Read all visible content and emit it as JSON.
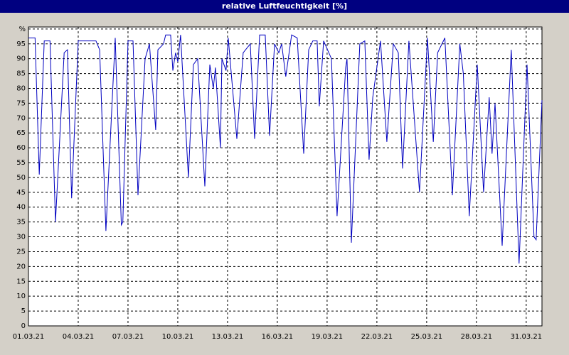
{
  "chart_data": {
    "type": "line",
    "title": "relative Luftfeuchtigkeit [%]",
    "xlim": [
      0,
      30.95
    ],
    "ylim": [
      0,
      100
    ],
    "xticks": [
      {
        "value": 0,
        "label": "01.03.21"
      },
      {
        "value": 3,
        "label": "04.03.21"
      },
      {
        "value": 6,
        "label": "07.03.21"
      },
      {
        "value": 9,
        "label": "10.03.21"
      },
      {
        "value": 12,
        "label": "13.03.21"
      },
      {
        "value": 15,
        "label": "16.03.21"
      },
      {
        "value": 18,
        "label": "19.03.21"
      },
      {
        "value": 21,
        "label": "22.03.21"
      },
      {
        "value": 24,
        "label": "25.03.21"
      },
      {
        "value": 27,
        "label": "28.03.21"
      },
      {
        "value": 30,
        "label": "31.03.21"
      }
    ],
    "yticks": [
      0,
      5,
      10,
      15,
      20,
      25,
      30,
      35,
      40,
      45,
      50,
      55,
      60,
      65,
      70,
      75,
      80,
      85,
      90,
      95,
      {
        "value": 100,
        "label": "%"
      }
    ],
    "grid": true,
    "series": [
      {
        "color": "#0000c0",
        "x": [
          0,
          0.4,
          0.65,
          0.95,
          1.3,
          1.63,
          2.15,
          2.35,
          2.6,
          3.0,
          4.07,
          4.29,
          4.67,
          5.23,
          5.6,
          5.69,
          6.0,
          6.3,
          6.6,
          7.03,
          7.29,
          7.67,
          7.8,
          8.14,
          8.27,
          8.57,
          8.7,
          8.87,
          9.0,
          9.17,
          9.64,
          9.94,
          10.2,
          10.63,
          10.93,
          11.14,
          11.27,
          11.57,
          11.66,
          11.91,
          12.04,
          12.56,
          12.94,
          13.37,
          13.63,
          13.93,
          14.27,
          14.53,
          14.83,
          15.09,
          15.26,
          15.51,
          15.86,
          16.2,
          16.59,
          16.89,
          17.14,
          17.4,
          17.53,
          17.79,
          18.26,
          18.6,
          19.12,
          19.2,
          19.46,
          19.97,
          20.27,
          20.53,
          20.75,
          21.22,
          21.6,
          21.99,
          22.29,
          22.55,
          22.93,
          23.57,
          24.05,
          24.4,
          24.66,
          25.1,
          25.55,
          26.0,
          26.21,
          26.57,
          27.05,
          27.43,
          27.77,
          27.94,
          28.12,
          28.55,
          29.1,
          29.57,
          30.05,
          30.47,
          30.6,
          30.95
        ],
        "values": [
          97,
          97,
          51,
          96,
          96,
          35,
          92,
          93,
          43,
          96,
          96,
          93,
          32,
          97,
          34,
          35,
          96,
          96,
          44,
          90,
          95,
          66,
          93,
          95,
          98,
          98,
          86,
          92,
          89,
          98,
          50,
          88,
          90,
          47,
          88,
          80,
          87,
          60,
          90,
          86,
          97,
          63,
          92,
          95,
          63,
          98,
          98,
          64,
          95,
          92,
          95,
          84,
          98,
          97,
          58,
          93,
          96,
          96,
          74,
          96,
          90,
          37,
          87,
          90,
          28,
          95,
          96,
          56,
          77,
          96,
          62,
          95,
          92,
          53,
          96,
          45,
          97,
          62,
          92,
          97,
          44,
          95,
          85,
          37,
          88,
          45,
          77,
          58,
          75,
          27,
          93,
          21,
          88,
          30,
          29,
          76
        ]
      }
    ]
  }
}
